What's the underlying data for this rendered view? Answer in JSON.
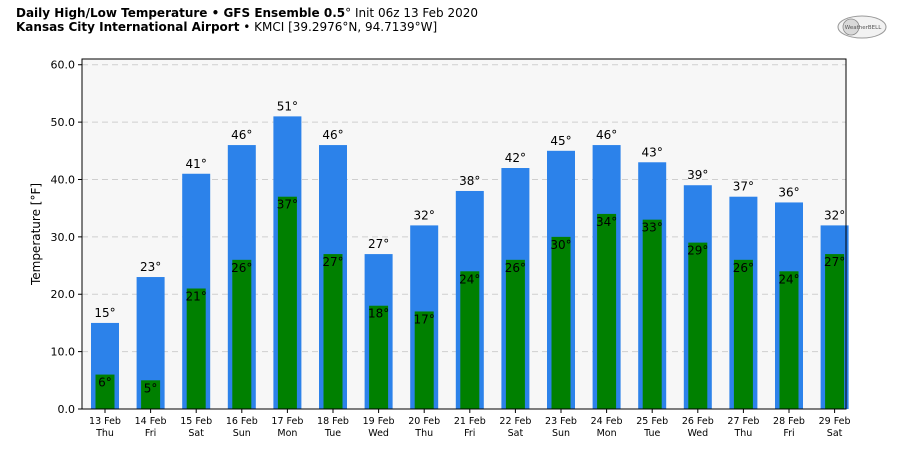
{
  "header": {
    "title_bold": "Daily High/Low Temperature • GFS Ensemble 0.5",
    "title_deg": "°",
    "title_rest": " Init 06z 13 Feb 2020",
    "location_bold": "Kansas City International Airport",
    "location_rest": " • KMCI [39.2976°N, 94.7139°W]",
    "logo_text": "WeatherBELL"
  },
  "chart_data": {
    "type": "bar",
    "title": "Daily High/Low Temperature • GFS Ensemble 0.5° Init 06z 13 Feb 2020",
    "subtitle": "Kansas City International Airport • KMCI [39.2976°N, 94.7139°W]",
    "ylabel": "Temperature [°F]",
    "xlabel": "",
    "ylim": [
      0,
      61
    ],
    "yticks": [
      "0.0",
      "10.0",
      "20.0",
      "30.0",
      "40.0",
      "50.0",
      "60.0"
    ],
    "ytick_values": [
      0,
      10,
      20,
      30,
      40,
      50,
      60
    ],
    "grid": true,
    "categories": [
      {
        "date": "13 Feb",
        "day": "Thu"
      },
      {
        "date": "14 Feb",
        "day": "Fri"
      },
      {
        "date": "15 Feb",
        "day": "Sat"
      },
      {
        "date": "16 Feb",
        "day": "Sun"
      },
      {
        "date": "17 Feb",
        "day": "Mon"
      },
      {
        "date": "18 Feb",
        "day": "Tue"
      },
      {
        "date": "19 Feb",
        "day": "Wed"
      },
      {
        "date": "20 Feb",
        "day": "Thu"
      },
      {
        "date": "21 Feb",
        "day": "Fri"
      },
      {
        "date": "22 Feb",
        "day": "Sat"
      },
      {
        "date": "23 Feb",
        "day": "Sun"
      },
      {
        "date": "24 Feb",
        "day": "Mon"
      },
      {
        "date": "25 Feb",
        "day": "Tue"
      },
      {
        "date": "26 Feb",
        "day": "Wed"
      },
      {
        "date": "27 Feb",
        "day": "Thu"
      },
      {
        "date": "28 Feb",
        "day": "Fri"
      },
      {
        "date": "29 Feb",
        "day": "Sat"
      }
    ],
    "series": [
      {
        "key": "high",
        "color": "#2c82ea",
        "values": [
          15,
          23,
          41,
          46,
          51,
          46,
          27,
          32,
          38,
          42,
          45,
          46,
          43,
          39,
          37,
          36,
          32
        ]
      },
      {
        "key": "low",
        "color": "#008000",
        "values": [
          6,
          5,
          21,
          26,
          37,
          27,
          18,
          17,
          24,
          26,
          30,
          34,
          33,
          29,
          26,
          24,
          27
        ]
      }
    ],
    "value_suffix": "°"
  }
}
